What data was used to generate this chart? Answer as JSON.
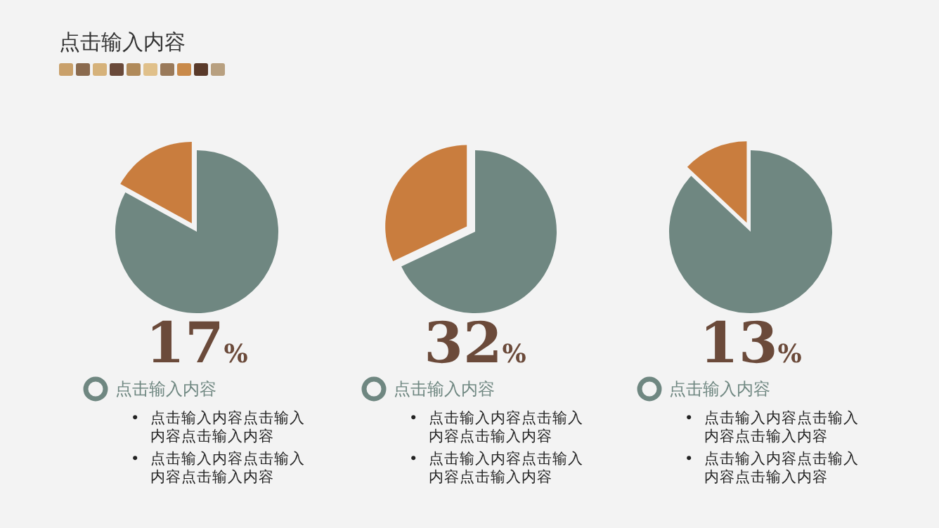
{
  "chart_data": [
    {
      "type": "pie",
      "title": "点击输入内容",
      "subtitle": "点击输入内容",
      "categories": [
        null,
        null
      ],
      "values": [
        17,
        83
      ],
      "colors": [
        "#c97d3e",
        "#6f8781"
      ],
      "annotations": [
        "17%",
        "• 点击输入内容点击输入内容点击输入内容",
        "• 点击输入内容点击输入内容点击输入内容"
      ]
    },
    {
      "type": "pie",
      "subtitle": "点击输入内容",
      "categories": [
        null,
        null
      ],
      "values": [
        32,
        68
      ],
      "colors": [
        "#c97d3e",
        "#6f8781"
      ],
      "annotations": [
        "32%",
        "• 点击输入内容点击输入内容点击输入内容",
        "• 点击输入内容点击输入内容点击输入内容"
      ]
    },
    {
      "type": "pie",
      "subtitle": "点击输入内容",
      "categories": [
        null,
        null
      ],
      "values": [
        13,
        87
      ],
      "colors": [
        "#c97d3e",
        "#6f8781"
      ],
      "annotations": [
        "13%",
        "• 点击输入内容点击输入内容点击输入内容",
        "• 点击输入内容点击输入内容点击输入内容"
      ]
    }
  ]
}
